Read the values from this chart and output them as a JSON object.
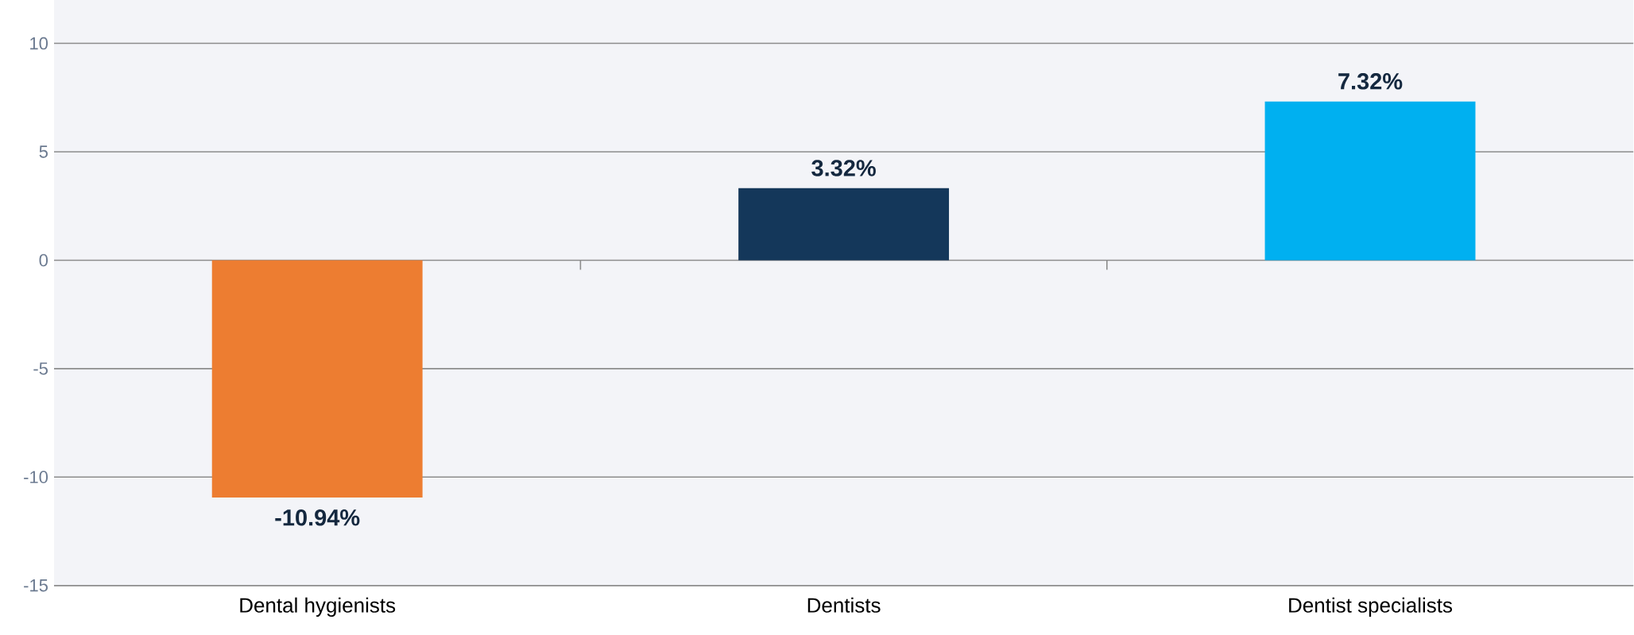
{
  "chart_data": {
    "type": "bar",
    "categories": [
      "Dental hygienists",
      "Dentists",
      "Dentist specialists"
    ],
    "values": [
      -10.94,
      3.32,
      7.32
    ],
    "colors": [
      "#ed7d31",
      "#14375a",
      "#00b0f0"
    ],
    "value_labels": [
      "-10.94%",
      "3.32%",
      "7.32%"
    ],
    "ylim": [
      -15,
      12
    ],
    "yticks": [
      -15,
      -10,
      -5,
      0,
      5,
      10
    ],
    "grid": "y"
  }
}
